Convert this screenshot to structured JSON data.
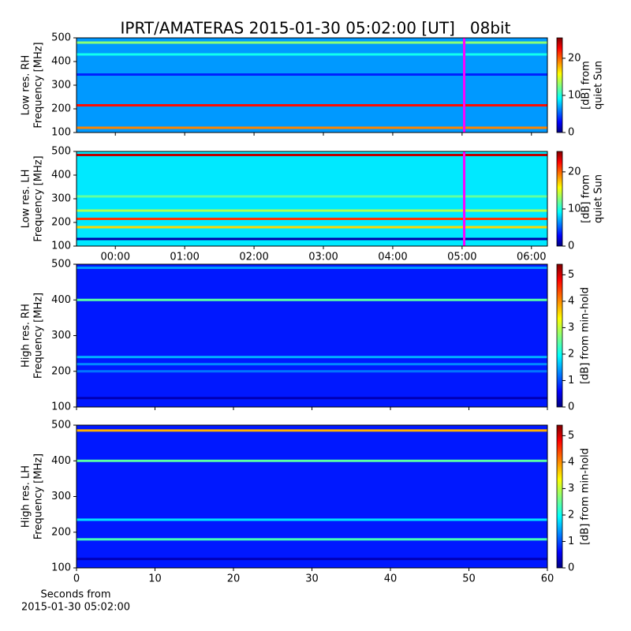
{
  "chart_data": [
    {
      "type": "heatmap",
      "title": "IPRT/AMATERAS 2015-01-30 05:02:00 [UT]   08bit",
      "ylabel": [
        "Low res. RH",
        "Frequency [MHz]"
      ],
      "ylim": [
        100,
        500
      ],
      "yticks": [
        100,
        200,
        300,
        400,
        500
      ],
      "xlim": [
        -0.56,
        6.23
      ],
      "xticks": [
        0,
        1,
        2,
        3,
        4,
        5,
        6
      ],
      "show_xtick_labels": false,
      "background_level": 7,
      "band_freqs": [
        480,
        430,
        345,
        215,
        120
      ],
      "band_levels": [
        13,
        10,
        4,
        22,
        19
      ],
      "marker_x": 5.03,
      "marker_color": "#ff00ff",
      "colorbar": {
        "lim": [
          0,
          25.5
        ],
        "ticks": [
          0,
          10,
          20
        ],
        "label": [
          "[dB] from",
          "quiet Sun"
        ]
      }
    },
    {
      "type": "heatmap",
      "ylabel": [
        "Low res. LH",
        "Frequency [MHz]"
      ],
      "ylim": [
        100,
        500
      ],
      "yticks": [
        100,
        200,
        300,
        400,
        500
      ],
      "xlim": [
        -0.56,
        6.23
      ],
      "xticks": [
        {
          "value": 0,
          "label": "00:00"
        },
        {
          "value": 1,
          "label": "01:00"
        },
        {
          "value": 2,
          "label": "02:00"
        },
        {
          "value": 3,
          "label": "03:00"
        },
        {
          "value": 4,
          "label": "04:00"
        },
        {
          "value": 5,
          "label": "05:00"
        },
        {
          "value": 6,
          "label": "06:00"
        }
      ],
      "show_xtick_labels": true,
      "background_level": 9,
      "band_freqs": [
        485,
        310,
        250,
        215,
        180,
        130
      ],
      "band_levels": [
        24,
        12,
        14,
        21,
        17,
        1
      ],
      "marker_x": 5.03,
      "marker_color": "#ff00ff",
      "colorbar": {
        "lim": [
          0,
          25.5
        ],
        "ticks": [
          0,
          10,
          20
        ],
        "label": [
          "[dB] from",
          "quiet Sun"
        ]
      }
    },
    {
      "type": "heatmap",
      "ylabel": [
        "High res. RH",
        "Frequency [MHz]"
      ],
      "ylim": [
        100,
        500
      ],
      "yticks": [
        100,
        200,
        300,
        400,
        500
      ],
      "xlim": [
        0,
        60
      ],
      "xticks": [
        0,
        10,
        20,
        30,
        40,
        50,
        60
      ],
      "show_xtick_labels": false,
      "background_level": 0.8,
      "band_freqs": [
        490,
        400,
        240,
        220,
        200,
        125
      ],
      "band_levels": [
        1.5,
        2.5,
        1.6,
        1.4,
        1.3,
        0.3
      ],
      "colorbar": {
        "lim": [
          0,
          5.4
        ],
        "ticks": [
          0,
          1,
          2,
          3,
          4,
          5
        ],
        "label": [
          "[dB] from min-hold"
        ]
      }
    },
    {
      "type": "heatmap",
      "ylabel": [
        "High res. LH",
        "Frequency [MHz]"
      ],
      "ylim": [
        100,
        500
      ],
      "yticks": [
        100,
        200,
        300,
        400,
        500
      ],
      "xlim": [
        0,
        60
      ],
      "xticks": [
        0,
        10,
        20,
        30,
        40,
        50,
        60
      ],
      "show_xtick_labels": true,
      "xlabel": [
        "Seconds from",
        "2015-01-30 05:02:00"
      ],
      "background_level": 0.8,
      "band_freqs": [
        485,
        400,
        235,
        180,
        125
      ],
      "band_levels": [
        3.8,
        2.5,
        1.9,
        2.4,
        0.3
      ],
      "colorbar": {
        "lim": [
          0,
          5.4
        ],
        "ticks": [
          0,
          1,
          2,
          3,
          4,
          5
        ],
        "label": [
          "[dB] from min-hold"
        ]
      }
    }
  ]
}
